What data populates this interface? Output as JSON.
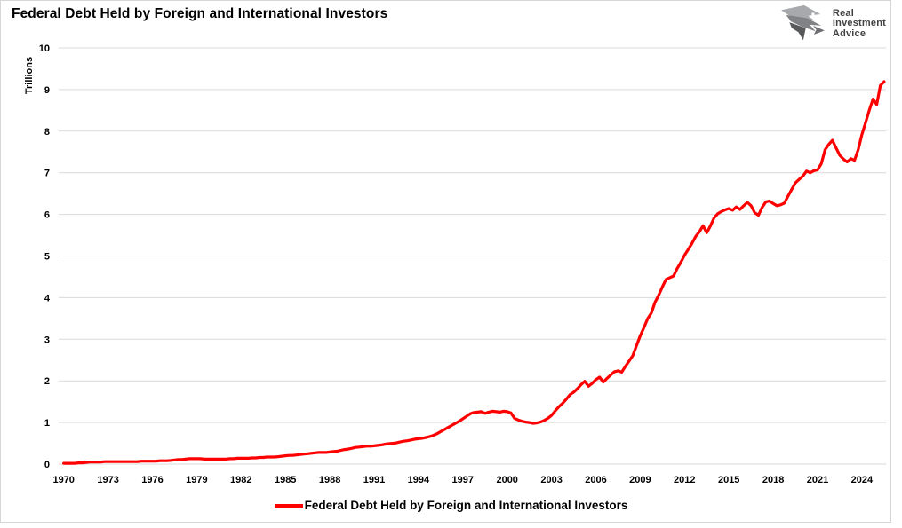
{
  "header": {
    "title": "Federal Debt Held by Foreign and International Investors"
  },
  "logo": {
    "lines": [
      "Real",
      "Investment",
      "Advice"
    ],
    "color": "#414042"
  },
  "chart_data": {
    "type": "line",
    "title": "Federal Debt Held by Foreign and International Investors",
    "xlabel": "",
    "ylabel": "Trillions",
    "ylim": [
      0,
      10
    ],
    "yticks": [
      0,
      1,
      2,
      3,
      4,
      5,
      6,
      7,
      8,
      9,
      10
    ],
    "xticks": [
      1970,
      1973,
      1976,
      1979,
      1982,
      1985,
      1988,
      1991,
      1994,
      1997,
      2000,
      2003,
      2006,
      2009,
      2012,
      2015,
      2018,
      2021,
      2024
    ],
    "xlim": [
      1969.3,
      2026.2
    ],
    "grid": "horizontal-only",
    "gridline_color": "#d9d9d9",
    "legend": {
      "position": "bottom-center",
      "label": "Federal Debt Held by Foreign and International Investors"
    },
    "series": [
      {
        "name": "Federal Debt Held by Foreign and International Investors",
        "color": "#ff0000",
        "units": "trillions of dollars",
        "points": [
          [
            1970.0,
            0.02
          ],
          [
            1970.25,
            0.02
          ],
          [
            1970.5,
            0.02
          ],
          [
            1970.75,
            0.02
          ],
          [
            1971.0,
            0.03
          ],
          [
            1971.25,
            0.03
          ],
          [
            1971.5,
            0.04
          ],
          [
            1971.75,
            0.05
          ],
          [
            1972.0,
            0.05
          ],
          [
            1972.25,
            0.05
          ],
          [
            1972.5,
            0.05
          ],
          [
            1972.75,
            0.06
          ],
          [
            1973.0,
            0.06
          ],
          [
            1973.25,
            0.06
          ],
          [
            1973.5,
            0.06
          ],
          [
            1973.75,
            0.06
          ],
          [
            1974.0,
            0.06
          ],
          [
            1974.25,
            0.06
          ],
          [
            1974.5,
            0.06
          ],
          [
            1974.75,
            0.06
          ],
          [
            1975.0,
            0.06
          ],
          [
            1975.25,
            0.07
          ],
          [
            1975.5,
            0.07
          ],
          [
            1975.75,
            0.07
          ],
          [
            1976.0,
            0.07
          ],
          [
            1976.25,
            0.07
          ],
          [
            1976.5,
            0.08
          ],
          [
            1976.75,
            0.08
          ],
          [
            1977.0,
            0.08
          ],
          [
            1977.25,
            0.09
          ],
          [
            1977.5,
            0.1
          ],
          [
            1977.75,
            0.11
          ],
          [
            1978.0,
            0.11
          ],
          [
            1978.25,
            0.12
          ],
          [
            1978.5,
            0.13
          ],
          [
            1978.75,
            0.13
          ],
          [
            1979.0,
            0.13
          ],
          [
            1979.25,
            0.13
          ],
          [
            1979.5,
            0.12
          ],
          [
            1979.75,
            0.12
          ],
          [
            1980.0,
            0.12
          ],
          [
            1980.25,
            0.12
          ],
          [
            1980.5,
            0.12
          ],
          [
            1980.75,
            0.12
          ],
          [
            1981.0,
            0.12
          ],
          [
            1981.25,
            0.13
          ],
          [
            1981.5,
            0.13
          ],
          [
            1981.75,
            0.14
          ],
          [
            1982.0,
            0.14
          ],
          [
            1982.25,
            0.14
          ],
          [
            1982.5,
            0.14
          ],
          [
            1982.75,
            0.15
          ],
          [
            1983.0,
            0.15
          ],
          [
            1983.25,
            0.16
          ],
          [
            1983.5,
            0.16
          ],
          [
            1983.75,
            0.17
          ],
          [
            1984.0,
            0.17
          ],
          [
            1984.25,
            0.17
          ],
          [
            1984.5,
            0.18
          ],
          [
            1984.75,
            0.19
          ],
          [
            1985.0,
            0.2
          ],
          [
            1985.25,
            0.21
          ],
          [
            1985.5,
            0.21
          ],
          [
            1985.75,
            0.22
          ],
          [
            1986.0,
            0.23
          ],
          [
            1986.25,
            0.24
          ],
          [
            1986.5,
            0.25
          ],
          [
            1986.75,
            0.26
          ],
          [
            1987.0,
            0.27
          ],
          [
            1987.25,
            0.28
          ],
          [
            1987.5,
            0.28
          ],
          [
            1987.75,
            0.28
          ],
          [
            1988.0,
            0.29
          ],
          [
            1988.25,
            0.3
          ],
          [
            1988.5,
            0.31
          ],
          [
            1988.75,
            0.33
          ],
          [
            1989.0,
            0.35
          ],
          [
            1989.25,
            0.36
          ],
          [
            1989.5,
            0.38
          ],
          [
            1989.75,
            0.4
          ],
          [
            1990.0,
            0.41
          ],
          [
            1990.25,
            0.42
          ],
          [
            1990.5,
            0.43
          ],
          [
            1990.75,
            0.43
          ],
          [
            1991.0,
            0.44
          ],
          [
            1991.25,
            0.45
          ],
          [
            1991.5,
            0.46
          ],
          [
            1991.75,
            0.48
          ],
          [
            1992.0,
            0.49
          ],
          [
            1992.25,
            0.5
          ],
          [
            1992.5,
            0.51
          ],
          [
            1992.75,
            0.53
          ],
          [
            1993.0,
            0.55
          ],
          [
            1993.25,
            0.56
          ],
          [
            1993.5,
            0.58
          ],
          [
            1993.75,
            0.6
          ],
          [
            1994.0,
            0.61
          ],
          [
            1994.25,
            0.62
          ],
          [
            1994.5,
            0.64
          ],
          [
            1994.75,
            0.66
          ],
          [
            1995.0,
            0.69
          ],
          [
            1995.25,
            0.73
          ],
          [
            1995.5,
            0.78
          ],
          [
            1995.75,
            0.83
          ],
          [
            1996.0,
            0.88
          ],
          [
            1996.25,
            0.93
          ],
          [
            1996.5,
            0.98
          ],
          [
            1996.75,
            1.03
          ],
          [
            1997.0,
            1.09
          ],
          [
            1997.25,
            1.15
          ],
          [
            1997.5,
            1.21
          ],
          [
            1997.75,
            1.24
          ],
          [
            1998.0,
            1.25
          ],
          [
            1998.25,
            1.26
          ],
          [
            1998.5,
            1.22
          ],
          [
            1998.75,
            1.25
          ],
          [
            1999.0,
            1.27
          ],
          [
            1999.25,
            1.26
          ],
          [
            1999.5,
            1.25
          ],
          [
            1999.75,
            1.27
          ],
          [
            2000.0,
            1.26
          ],
          [
            2000.25,
            1.23
          ],
          [
            2000.5,
            1.1
          ],
          [
            2000.75,
            1.06
          ],
          [
            2001.0,
            1.03
          ],
          [
            2001.25,
            1.01
          ],
          [
            2001.5,
            1.0
          ],
          [
            2001.75,
            0.98
          ],
          [
            2002.0,
            0.99
          ],
          [
            2002.25,
            1.01
          ],
          [
            2002.5,
            1.05
          ],
          [
            2002.75,
            1.1
          ],
          [
            2003.0,
            1.17
          ],
          [
            2003.25,
            1.28
          ],
          [
            2003.5,
            1.38
          ],
          [
            2003.75,
            1.46
          ],
          [
            2004.0,
            1.56
          ],
          [
            2004.25,
            1.67
          ],
          [
            2004.5,
            1.73
          ],
          [
            2004.75,
            1.81
          ],
          [
            2005.0,
            1.91
          ],
          [
            2005.25,
            1.99
          ],
          [
            2005.5,
            1.87
          ],
          [
            2005.75,
            1.94
          ],
          [
            2006.0,
            2.03
          ],
          [
            2006.25,
            2.09
          ],
          [
            2006.5,
            1.97
          ],
          [
            2006.75,
            2.06
          ],
          [
            2007.0,
            2.14
          ],
          [
            2007.25,
            2.22
          ],
          [
            2007.5,
            2.24
          ],
          [
            2007.75,
            2.21
          ],
          [
            2008.0,
            2.35
          ],
          [
            2008.25,
            2.48
          ],
          [
            2008.5,
            2.61
          ],
          [
            2008.75,
            2.85
          ],
          [
            2009.0,
            3.08
          ],
          [
            2009.25,
            3.28
          ],
          [
            2009.5,
            3.49
          ],
          [
            2009.75,
            3.63
          ],
          [
            2010.0,
            3.89
          ],
          [
            2010.25,
            4.06
          ],
          [
            2010.5,
            4.26
          ],
          [
            2010.75,
            4.44
          ],
          [
            2011.0,
            4.48
          ],
          [
            2011.25,
            4.52
          ],
          [
            2011.5,
            4.7
          ],
          [
            2011.75,
            4.85
          ],
          [
            2012.0,
            5.02
          ],
          [
            2012.25,
            5.16
          ],
          [
            2012.5,
            5.3
          ],
          [
            2012.75,
            5.47
          ],
          [
            2013.0,
            5.58
          ],
          [
            2013.25,
            5.73
          ],
          [
            2013.5,
            5.56
          ],
          [
            2013.75,
            5.72
          ],
          [
            2014.0,
            5.92
          ],
          [
            2014.25,
            6.02
          ],
          [
            2014.5,
            6.07
          ],
          [
            2014.75,
            6.11
          ],
          [
            2015.0,
            6.14
          ],
          [
            2015.25,
            6.1
          ],
          [
            2015.5,
            6.18
          ],
          [
            2015.75,
            6.12
          ],
          [
            2016.0,
            6.21
          ],
          [
            2016.25,
            6.29
          ],
          [
            2016.5,
            6.21
          ],
          [
            2016.75,
            6.04
          ],
          [
            2017.0,
            5.98
          ],
          [
            2017.25,
            6.17
          ],
          [
            2017.5,
            6.3
          ],
          [
            2017.75,
            6.32
          ],
          [
            2018.0,
            6.26
          ],
          [
            2018.25,
            6.21
          ],
          [
            2018.5,
            6.23
          ],
          [
            2018.75,
            6.27
          ],
          [
            2019.0,
            6.44
          ],
          [
            2019.25,
            6.6
          ],
          [
            2019.5,
            6.76
          ],
          [
            2019.75,
            6.84
          ],
          [
            2020.0,
            6.92
          ],
          [
            2020.25,
            7.04
          ],
          [
            2020.5,
            7.0
          ],
          [
            2020.75,
            7.05
          ],
          [
            2021.0,
            7.07
          ],
          [
            2021.25,
            7.22
          ],
          [
            2021.5,
            7.55
          ],
          [
            2021.75,
            7.68
          ],
          [
            2022.0,
            7.78
          ],
          [
            2022.25,
            7.6
          ],
          [
            2022.5,
            7.42
          ],
          [
            2022.75,
            7.33
          ],
          [
            2023.0,
            7.26
          ],
          [
            2023.25,
            7.34
          ],
          [
            2023.5,
            7.3
          ],
          [
            2023.75,
            7.56
          ],
          [
            2024.0,
            7.92
          ],
          [
            2024.25,
            8.21
          ],
          [
            2024.5,
            8.51
          ],
          [
            2024.75,
            8.77
          ],
          [
            2025.0,
            8.64
          ],
          [
            2025.25,
            9.1
          ],
          [
            2025.5,
            9.19
          ]
        ]
      }
    ]
  }
}
